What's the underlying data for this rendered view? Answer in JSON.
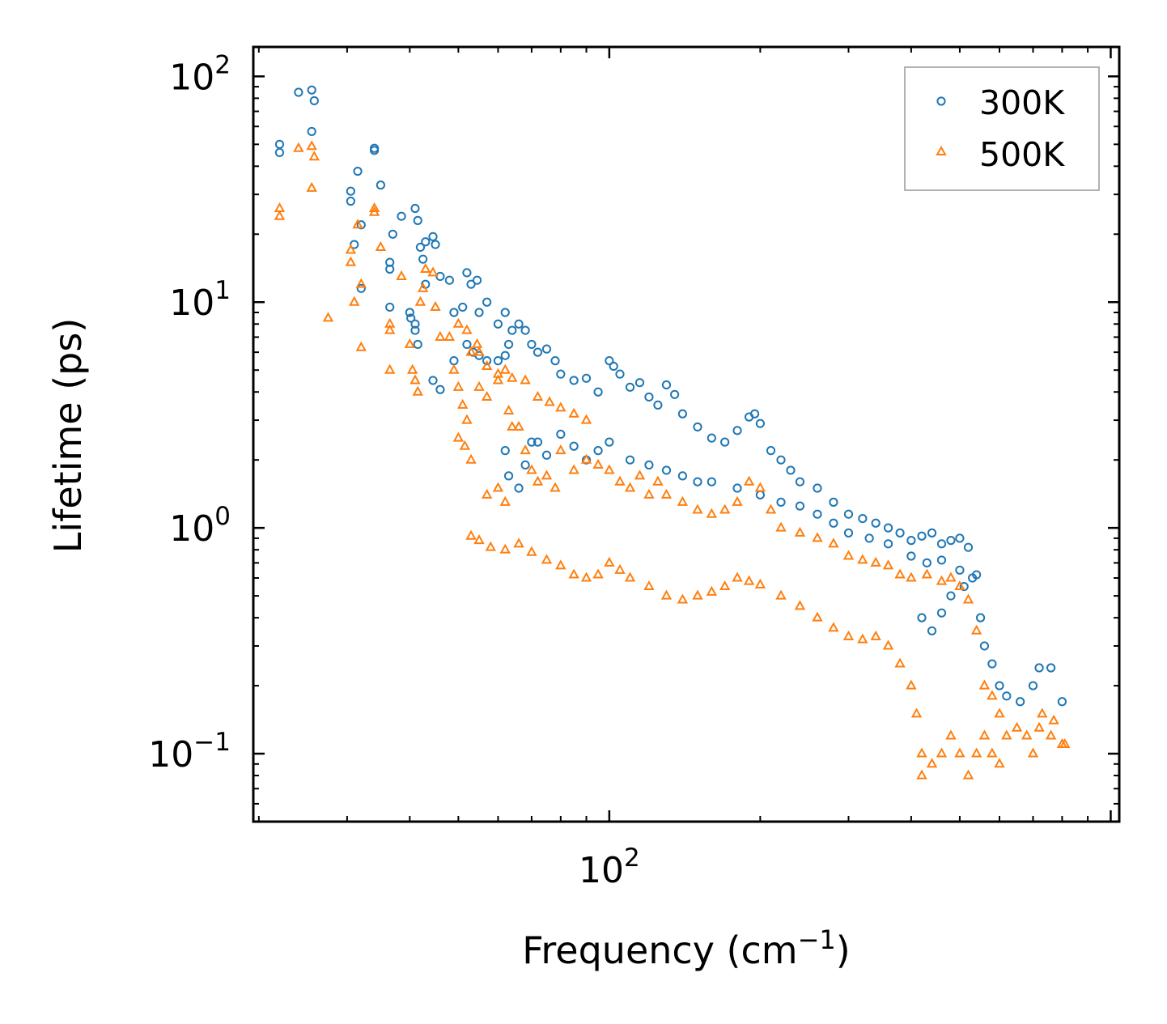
{
  "chart_data": {
    "type": "scatter",
    "title": "",
    "xlabel": "Frequency (cm",
    "xlabel_sup": "−1",
    "xlabel_close": ")",
    "ylabel": "Lifetime (ps)",
    "xscale": "log",
    "yscale": "log",
    "xlim": [
      19.5,
      1040
    ],
    "ylim": [
      0.05,
      135
    ],
    "x_ticks": [
      {
        "value": 100,
        "base": "10",
        "exp": "2"
      }
    ],
    "y_ticks": [
      {
        "value": 0.1,
        "base": "10",
        "exp": "−1"
      },
      {
        "value": 1,
        "base": "10",
        "exp": "0"
      },
      {
        "value": 10,
        "base": "10",
        "exp": "1"
      },
      {
        "value": 100,
        "base": "10",
        "exp": "2"
      }
    ],
    "legend_position": "top-right",
    "series": [
      {
        "name": "300K",
        "marker": "circle",
        "color": "#1f77b4",
        "points": [
          [
            22.0,
            50
          ],
          [
            22.0,
            46
          ],
          [
            24.0,
            85
          ],
          [
            25.5,
            87
          ],
          [
            25.8,
            78
          ],
          [
            25.5,
            57
          ],
          [
            30.5,
            28
          ],
          [
            30.5,
            31
          ],
          [
            31.0,
            18
          ],
          [
            31.5,
            38
          ],
          [
            32.0,
            22
          ],
          [
            32.0,
            11.5
          ],
          [
            34.0,
            47
          ],
          [
            34.0,
            48
          ],
          [
            35.0,
            33
          ],
          [
            37.0,
            20
          ],
          [
            38.5,
            24
          ],
          [
            36.5,
            14
          ],
          [
            36.5,
            15
          ],
          [
            36.5,
            9.5
          ],
          [
            40.0,
            9
          ],
          [
            40.2,
            8.5
          ],
          [
            41.0,
            26
          ],
          [
            41.5,
            23
          ],
          [
            42.0,
            17.5
          ],
          [
            42.5,
            15.5
          ],
          [
            43.0,
            18.5
          ],
          [
            43.0,
            12
          ],
          [
            41.0,
            8
          ],
          [
            41.0,
            7.5
          ],
          [
            41.5,
            6.5
          ],
          [
            44.5,
            19.5
          ],
          [
            45.0,
            18
          ],
          [
            46.0,
            13
          ],
          [
            48.0,
            12.5
          ],
          [
            49.0,
            9
          ],
          [
            51.0,
            9.5
          ],
          [
            44.5,
            4.5
          ],
          [
            46.0,
            4.1
          ],
          [
            49.0,
            5.5
          ],
          [
            52.0,
            13.5
          ],
          [
            53.0,
            12
          ],
          [
            54.5,
            12.5
          ],
          [
            55.0,
            9
          ],
          [
            57.0,
            10
          ],
          [
            60.0,
            8
          ],
          [
            62.0,
            9
          ],
          [
            63.0,
            6.5
          ],
          [
            64.0,
            7.5
          ],
          [
            52.0,
            6.5
          ],
          [
            53.5,
            6
          ],
          [
            55.0,
            5.8
          ],
          [
            57.0,
            5.5
          ],
          [
            60.0,
            5.5
          ],
          [
            62.0,
            5.8
          ],
          [
            66.0,
            8
          ],
          [
            68.0,
            7.5
          ],
          [
            70.0,
            6.5
          ],
          [
            72.0,
            6
          ],
          [
            75.0,
            6.2
          ],
          [
            78.0,
            5.5
          ],
          [
            80.0,
            4.8
          ],
          [
            85.0,
            4.5
          ],
          [
            90.0,
            4.6
          ],
          [
            95.0,
            4
          ],
          [
            100.0,
            5.5
          ],
          [
            102.0,
            5.2
          ],
          [
            105.0,
            4.8
          ],
          [
            110.0,
            4.2
          ],
          [
            115.0,
            4.4
          ],
          [
            120.0,
            3.8
          ],
          [
            125.0,
            3.5
          ],
          [
            130.0,
            4.3
          ],
          [
            135.0,
            3.9
          ],
          [
            140.0,
            3.2
          ],
          [
            150.0,
            2.8
          ],
          [
            160.0,
            2.5
          ],
          [
            170.0,
            2.4
          ],
          [
            180.0,
            2.7
          ],
          [
            190.0,
            3.1
          ],
          [
            195.0,
            3.2
          ],
          [
            200.0,
            2.9
          ],
          [
            210.0,
            2.2
          ],
          [
            220.0,
            2.0
          ],
          [
            230.0,
            1.8
          ],
          [
            240.0,
            1.6
          ],
          [
            260.0,
            1.5
          ],
          [
            280.0,
            1.3
          ],
          [
            300.0,
            1.15
          ],
          [
            320.0,
            1.1
          ],
          [
            340.0,
            1.05
          ],
          [
            360.0,
            1.0
          ],
          [
            380.0,
            0.95
          ],
          [
            400.0,
            0.88
          ],
          [
            420.0,
            0.92
          ],
          [
            440.0,
            0.95
          ],
          [
            460.0,
            0.85
          ],
          [
            480.0,
            0.88
          ],
          [
            500.0,
            0.9
          ],
          [
            520.0,
            0.82
          ],
          [
            540.0,
            0.62
          ],
          [
            550.0,
            0.4
          ],
          [
            560.0,
            0.3
          ],
          [
            580.0,
            0.25
          ],
          [
            600.0,
            0.2
          ],
          [
            620.0,
            0.18
          ],
          [
            660.0,
            0.17
          ],
          [
            700.0,
            0.2
          ],
          [
            720.0,
            0.24
          ],
          [
            760.0,
            0.24
          ],
          [
            800.0,
            0.17
          ],
          [
            62.0,
            2.2
          ],
          [
            63.0,
            1.7
          ],
          [
            66.0,
            1.5
          ],
          [
            68.0,
            1.9
          ],
          [
            70.0,
            2.4
          ],
          [
            72.0,
            2.4
          ],
          [
            75.0,
            2.1
          ],
          [
            80.0,
            2.6
          ],
          [
            85.0,
            2.3
          ],
          [
            90.0,
            2.0
          ],
          [
            95.0,
            2.2
          ],
          [
            100.0,
            2.4
          ],
          [
            110.0,
            2.0
          ],
          [
            120.0,
            1.9
          ],
          [
            130.0,
            1.8
          ],
          [
            140.0,
            1.7
          ],
          [
            150.0,
            1.6
          ],
          [
            160.0,
            1.6
          ],
          [
            180.0,
            1.5
          ],
          [
            200.0,
            1.4
          ],
          [
            220.0,
            1.3
          ],
          [
            240.0,
            1.25
          ],
          [
            260.0,
            1.15
          ],
          [
            280.0,
            1.05
          ],
          [
            300.0,
            0.95
          ],
          [
            330.0,
            0.9
          ],
          [
            360.0,
            0.85
          ],
          [
            400.0,
            0.75
          ],
          [
            430.0,
            0.7
          ],
          [
            460.0,
            0.72
          ],
          [
            500.0,
            0.65
          ],
          [
            530.0,
            0.6
          ],
          [
            420.0,
            0.4
          ],
          [
            440.0,
            0.35
          ],
          [
            460.0,
            0.42
          ],
          [
            480.0,
            0.5
          ],
          [
            510.0,
            0.55
          ]
        ]
      },
      {
        "name": "500K",
        "marker": "triangle",
        "color": "#ff7f0e",
        "points": [
          [
            22.0,
            26
          ],
          [
            22.0,
            24
          ],
          [
            24.0,
            48
          ],
          [
            25.5,
            49
          ],
          [
            25.8,
            44
          ],
          [
            25.5,
            32
          ],
          [
            27.5,
            8.5
          ],
          [
            30.5,
            17
          ],
          [
            30.5,
            15
          ],
          [
            31.0,
            10
          ],
          [
            31.5,
            22
          ],
          [
            32.0,
            12
          ],
          [
            32.0,
            6.3
          ],
          [
            34.0,
            26
          ],
          [
            34.0,
            25
          ],
          [
            35.0,
            17.5
          ],
          [
            36.5,
            8
          ],
          [
            36.5,
            7.5
          ],
          [
            36.5,
            5
          ],
          [
            38.5,
            13
          ],
          [
            40.0,
            6.5
          ],
          [
            40.5,
            5
          ],
          [
            41.0,
            4.5
          ],
          [
            41.5,
            4
          ],
          [
            42.0,
            10
          ],
          [
            42.5,
            11.5
          ],
          [
            43.0,
            14
          ],
          [
            44.5,
            13.5
          ],
          [
            45.0,
            9.5
          ],
          [
            46.0,
            7
          ],
          [
            48.0,
            7
          ],
          [
            49.0,
            5
          ],
          [
            50.0,
            4.2
          ],
          [
            51.0,
            3.5
          ],
          [
            52.0,
            3
          ],
          [
            53.0,
            6
          ],
          [
            54.5,
            6.5
          ],
          [
            55.0,
            4.2
          ],
          [
            57.0,
            3.8
          ],
          [
            60.0,
            4.5
          ],
          [
            62.0,
            5
          ],
          [
            63.0,
            3.3
          ],
          [
            64.0,
            2.8
          ],
          [
            50.0,
            2.5
          ],
          [
            51.5,
            2.3
          ],
          [
            53.0,
            2.0
          ],
          [
            57.0,
            1.4
          ],
          [
            60.0,
            1.5
          ],
          [
            62.0,
            1.3
          ],
          [
            66.0,
            2.8
          ],
          [
            68.0,
            2.2
          ],
          [
            70.0,
            1.8
          ],
          [
            72.0,
            1.6
          ],
          [
            75.0,
            1.7
          ],
          [
            78.0,
            1.5
          ],
          [
            53.0,
            0.92
          ],
          [
            55.0,
            0.88
          ],
          [
            58.0,
            0.82
          ],
          [
            62.0,
            0.8
          ],
          [
            66.0,
            0.85
          ],
          [
            70.0,
            0.78
          ],
          [
            75.0,
            0.72
          ],
          [
            80.0,
            0.68
          ],
          [
            85.0,
            0.62
          ],
          [
            90.0,
            0.6
          ],
          [
            95.0,
            0.62
          ],
          [
            100.0,
            0.7
          ],
          [
            105.0,
            0.65
          ],
          [
            110.0,
            0.6
          ],
          [
            120.0,
            0.55
          ],
          [
            130.0,
            0.5
          ],
          [
            140.0,
            0.48
          ],
          [
            150.0,
            0.5
          ],
          [
            160.0,
            0.52
          ],
          [
            170.0,
            0.55
          ],
          [
            180.0,
            0.6
          ],
          [
            190.0,
            0.58
          ],
          [
            200.0,
            0.56
          ],
          [
            220.0,
            0.5
          ],
          [
            240.0,
            0.45
          ],
          [
            260.0,
            0.4
          ],
          [
            280.0,
            0.36
          ],
          [
            300.0,
            0.33
          ],
          [
            320.0,
            0.32
          ],
          [
            340.0,
            0.33
          ],
          [
            360.0,
            0.3
          ],
          [
            380.0,
            0.25
          ],
          [
            400.0,
            0.2
          ],
          [
            410.0,
            0.15
          ],
          [
            420.0,
            0.1
          ],
          [
            420.0,
            0.08
          ],
          [
            440.0,
            0.09
          ],
          [
            460.0,
            0.1
          ],
          [
            480.0,
            0.12
          ],
          [
            500.0,
            0.1
          ],
          [
            520.0,
            0.08
          ],
          [
            540.0,
            0.1
          ],
          [
            560.0,
            0.12
          ],
          [
            580.0,
            0.1
          ],
          [
            600.0,
            0.09
          ],
          [
            620.0,
            0.12
          ],
          [
            700.0,
            0.1
          ],
          [
            720.0,
            0.13
          ],
          [
            760.0,
            0.12
          ],
          [
            800.0,
            0.11
          ],
          [
            80.0,
            2.2
          ],
          [
            85.0,
            1.8
          ],
          [
            90.0,
            2.0
          ],
          [
            95.0,
            1.9
          ],
          [
            100.0,
            1.8
          ],
          [
            105.0,
            1.6
          ],
          [
            110.0,
            1.5
          ],
          [
            115.0,
            1.7
          ],
          [
            120.0,
            1.4
          ],
          [
            125.0,
            1.6
          ],
          [
            130.0,
            1.4
          ],
          [
            140.0,
            1.3
          ],
          [
            150.0,
            1.2
          ],
          [
            160.0,
            1.15
          ],
          [
            170.0,
            1.2
          ],
          [
            180.0,
            1.3
          ],
          [
            190.0,
            1.6
          ],
          [
            200.0,
            1.5
          ],
          [
            210.0,
            1.2
          ],
          [
            220.0,
            1.0
          ],
          [
            240.0,
            0.95
          ],
          [
            260.0,
            0.9
          ],
          [
            280.0,
            0.85
          ],
          [
            300.0,
            0.75
          ],
          [
            320.0,
            0.72
          ],
          [
            340.0,
            0.7
          ],
          [
            360.0,
            0.68
          ],
          [
            380.0,
            0.62
          ],
          [
            400.0,
            0.6
          ],
          [
            430.0,
            0.62
          ],
          [
            460.0,
            0.58
          ],
          [
            480.0,
            0.6
          ],
          [
            500.0,
            0.55
          ],
          [
            520.0,
            0.48
          ],
          [
            540.0,
            0.35
          ],
          [
            560.0,
            0.2
          ],
          [
            580.0,
            0.18
          ],
          [
            600.0,
            0.15
          ],
          [
            650.0,
            0.13
          ],
          [
            680.0,
            0.12
          ],
          [
            730.0,
            0.15
          ],
          [
            770.0,
            0.14
          ],
          [
            810.0,
            0.11
          ],
          [
            50.0,
            8
          ],
          [
            52.0,
            7.5
          ],
          [
            55.0,
            6
          ],
          [
            57.0,
            5.2
          ],
          [
            60.0,
            4.8
          ],
          [
            64.0,
            4.6
          ],
          [
            68.0,
            4.5
          ],
          [
            72.0,
            3.8
          ],
          [
            76.0,
            3.6
          ],
          [
            80.0,
            3.4
          ],
          [
            85.0,
            3.2
          ],
          [
            90.0,
            3.0
          ]
        ]
      }
    ]
  }
}
